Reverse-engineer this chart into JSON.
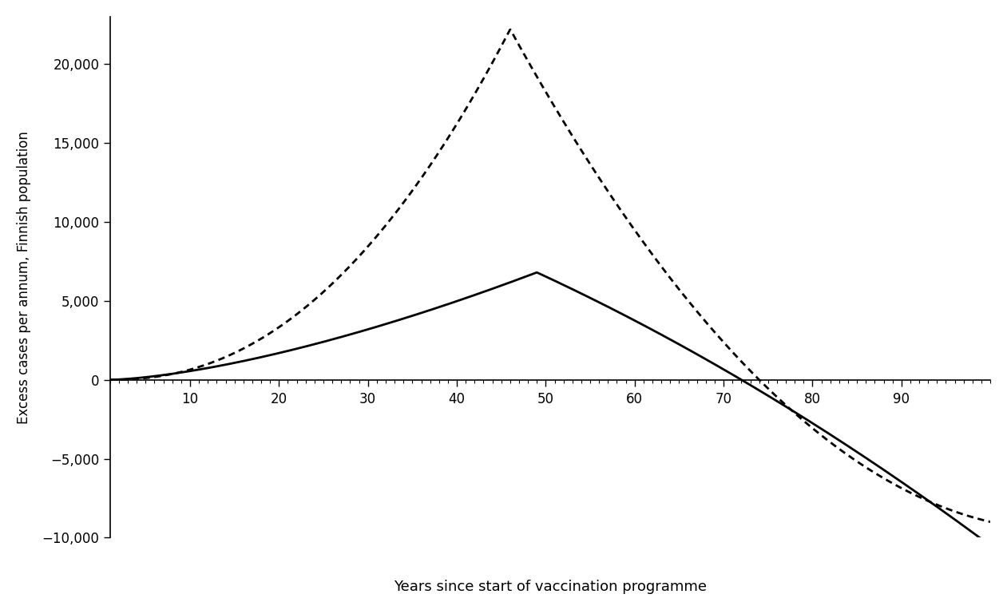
{
  "title": "",
  "xlabel": "Years since start of vaccination programme",
  "ylabel": "Excess cases per annum, Finnish population",
  "xlim": [
    1,
    100
  ],
  "ylim": [
    -10000,
    23000
  ],
  "yticks": [
    -10000,
    -5000,
    0,
    5000,
    10000,
    15000,
    20000
  ],
  "xticks": [
    10,
    20,
    30,
    40,
    50,
    60,
    70,
    80,
    90
  ],
  "background_color": "#ffffff",
  "line_color": "#000000"
}
